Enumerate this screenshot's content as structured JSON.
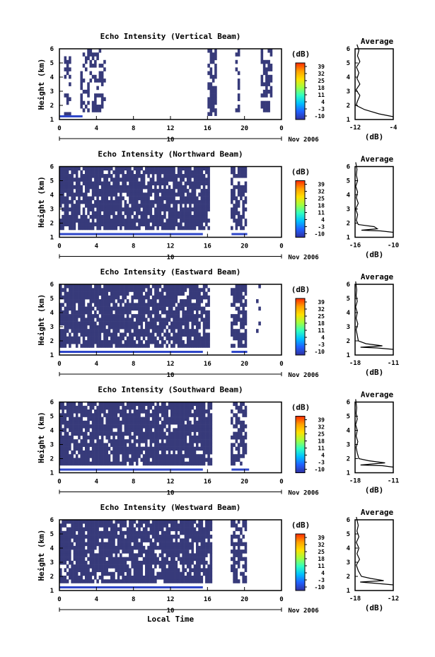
{
  "chart_data": {
    "type": "heatmap",
    "time_ticks": [
      "0",
      "4",
      "8",
      "12",
      "16",
      "20",
      "0"
    ],
    "height_ticks": [
      "1",
      "2",
      "3",
      "4",
      "5",
      "6"
    ],
    "date_label": "10",
    "month_label": "Nov 2006",
    "xlabel": "Local Time",
    "colorbar": {
      "title": "(dB)",
      "ticks": [
        "39",
        "32",
        "25",
        "18",
        "11",
        "4",
        "-3",
        "-10"
      ],
      "colors": [
        "#ff2a00",
        "#ffa000",
        "#ffe000",
        "#a0ff40",
        "#30ffc0",
        "#00c0ff",
        "#2060ff",
        "#3030a0"
      ]
    },
    "profile_title": "Average",
    "profile_xlabel": "(dB)",
    "cell_color": "#373a7a",
    "panels": [
      {
        "title": "Echo Intensity (Vertical Beam)",
        "ylabel": "Height (km)",
        "profile_xticks": [
          "-12",
          "-4"
        ],
        "bands": [
          [
            0.5,
            1.3,
            0.55,
            0.4
          ],
          [
            2.3,
            5.0,
            1.3,
            0.45
          ],
          [
            16.1,
            16.9,
            1.2,
            0.7
          ],
          [
            18.9,
            19.5,
            1.5,
            0.5
          ],
          [
            21.7,
            23.0,
            1.3,
            0.5
          ]
        ],
        "strips": [
          [
            0.0,
            2.5,
            1.0
          ]
        ],
        "profile": [
          [
            -4,
            1.2
          ],
          [
            -7,
            1.4
          ],
          [
            -10,
            1.7
          ],
          [
            -11.8,
            2.0
          ],
          [
            -11.5,
            2.3
          ],
          [
            -11.0,
            2.7
          ],
          [
            -11.8,
            3.1
          ],
          [
            -11.0,
            3.5
          ],
          [
            -11.6,
            3.9
          ],
          [
            -11.2,
            4.3
          ],
          [
            -11.7,
            4.7
          ],
          [
            -11.0,
            5.1
          ],
          [
            -11.5,
            5.5
          ],
          [
            -11.2,
            5.9
          ],
          [
            -11.6,
            6.3
          ]
        ]
      },
      {
        "title": "Echo Intensity (Northward Beam)",
        "ylabel": "Height (km)",
        "profile_xticks": [
          "-16",
          "-10"
        ],
        "bands": [
          [
            0.0,
            16.3,
            1.3,
            0.85
          ],
          [
            18.6,
            20.3,
            1.3,
            0.7
          ]
        ],
        "strips": [
          [
            0.0,
            15.5,
            1.0
          ],
          [
            18.6,
            20.3,
            0.8
          ]
        ],
        "profile": [
          [
            -10,
            1.35
          ],
          [
            -12,
            1.45
          ],
          [
            -15,
            1.5
          ],
          [
            -12.5,
            1.6
          ],
          [
            -13.0,
            1.75
          ],
          [
            -15.5,
            1.9
          ],
          [
            -15.8,
            2.2
          ],
          [
            -15.6,
            2.6
          ],
          [
            -15.9,
            3.0
          ],
          [
            -15.5,
            3.4
          ],
          [
            -15.8,
            3.8
          ],
          [
            -15.6,
            4.2
          ],
          [
            -15.9,
            4.6
          ],
          [
            -15.6,
            5.0
          ],
          [
            -15.8,
            5.4
          ],
          [
            -15.7,
            5.8
          ],
          [
            -15.9,
            6.3
          ]
        ]
      },
      {
        "title": "Echo Intensity (Eastward Beam)",
        "ylabel": "Height (km)",
        "profile_xticks": [
          "-18",
          "-11"
        ],
        "bands": [
          [
            0.0,
            16.3,
            1.3,
            0.87
          ],
          [
            18.6,
            20.3,
            1.3,
            0.65
          ],
          [
            21.2,
            21.8,
            1.6,
            0.3
          ]
        ],
        "strips": [
          [
            0.0,
            15.5,
            1.0
          ],
          [
            18.6,
            20.3,
            0.8
          ]
        ],
        "profile": [
          [
            -11,
            1.4
          ],
          [
            -14,
            1.5
          ],
          [
            -17,
            1.55
          ],
          [
            -13,
            1.65
          ],
          [
            -16,
            1.8
          ],
          [
            -17.4,
            2.0
          ],
          [
            -17.6,
            2.4
          ],
          [
            -17.8,
            2.8
          ],
          [
            -17.5,
            3.2
          ],
          [
            -17.8,
            3.6
          ],
          [
            -17.6,
            4.0
          ],
          [
            -17.9,
            4.4
          ],
          [
            -17.6,
            4.8
          ],
          [
            -17.8,
            5.2
          ],
          [
            -17.7,
            5.6
          ],
          [
            -17.9,
            6.2
          ]
        ]
      },
      {
        "title": "Echo Intensity (Southward Beam)",
        "ylabel": "Height (km)",
        "profile_xticks": [
          "-18",
          "-11"
        ],
        "bands": [
          [
            0.0,
            16.4,
            1.3,
            0.88
          ],
          [
            18.6,
            20.3,
            1.3,
            0.65
          ]
        ],
        "strips": [
          [
            0.0,
            15.5,
            1.0
          ],
          [
            18.6,
            20.5,
            0.8
          ]
        ],
        "profile": [
          [
            -11,
            1.4
          ],
          [
            -13,
            1.5
          ],
          [
            -17,
            1.55
          ],
          [
            -12.5,
            1.7
          ],
          [
            -15.5,
            1.85
          ],
          [
            -17.3,
            2.0
          ],
          [
            -17.6,
            2.4
          ],
          [
            -17.8,
            2.8
          ],
          [
            -17.5,
            3.2
          ],
          [
            -17.8,
            3.6
          ],
          [
            -17.6,
            4.0
          ],
          [
            -17.9,
            4.4
          ],
          [
            -17.6,
            4.8
          ],
          [
            -17.8,
            5.2
          ],
          [
            -17.7,
            5.6
          ],
          [
            -17.9,
            6.2
          ]
        ]
      },
      {
        "title": "Echo Intensity (Westward Beam)",
        "ylabel": "Height (km)",
        "profile_xticks": [
          "-18",
          "-12"
        ],
        "bands": [
          [
            0.0,
            16.4,
            1.3,
            0.85
          ],
          [
            18.6,
            20.3,
            1.3,
            0.65
          ]
        ],
        "strips": [
          [
            0.0,
            15.5,
            1.0
          ]
        ],
        "profile": [
          [
            -12,
            1.4
          ],
          [
            -14.5,
            1.5
          ],
          [
            -17.2,
            1.6
          ],
          [
            -13.5,
            1.7
          ],
          [
            -15.5,
            1.85
          ],
          [
            -17.0,
            2.0
          ],
          [
            -17.5,
            2.4
          ],
          [
            -17.8,
            2.8
          ],
          [
            -17.3,
            3.2
          ],
          [
            -17.7,
            3.6
          ],
          [
            -17.4,
            4.0
          ],
          [
            -17.8,
            4.4
          ],
          [
            -17.4,
            4.8
          ],
          [
            -17.7,
            5.2
          ],
          [
            -17.5,
            5.6
          ],
          [
            -17.8,
            6.2
          ]
        ]
      }
    ]
  }
}
